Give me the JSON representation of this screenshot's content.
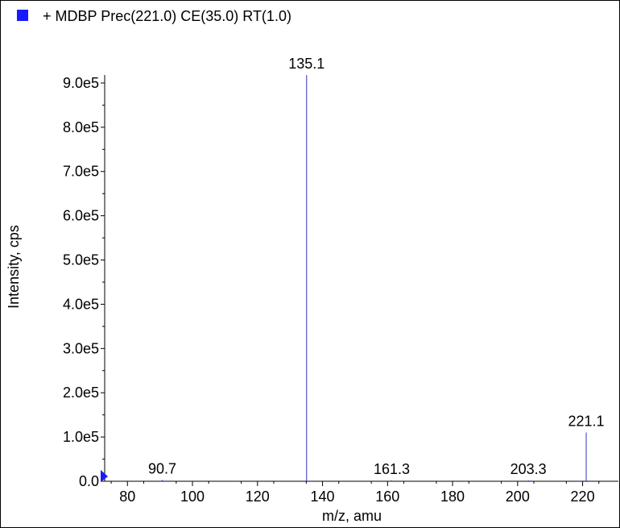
{
  "legend": {
    "label": "+ MDBP Prec(221.0) CE(35.0) RT(1.0)",
    "color": "#1a1aff"
  },
  "chart_data": {
    "type": "bar",
    "title": "",
    "xlabel": "m/z, amu",
    "ylabel": "Intensity, cps",
    "xlim": [
      73,
      231
    ],
    "ylim": [
      0,
      940000
    ],
    "x_ticks": [
      80,
      100,
      120,
      140,
      160,
      180,
      200,
      220
    ],
    "x_tick_labels": [
      "80",
      "100",
      "120",
      "140",
      "160",
      "180",
      "200",
      "220"
    ],
    "y_ticks": [
      0,
      100000,
      200000,
      300000,
      400000,
      500000,
      600000,
      700000,
      800000,
      900000
    ],
    "y_tick_labels": [
      "0.0",
      "1.0e5",
      "2.0e5",
      "3.0e5",
      "4.0e5",
      "5.0e5",
      "6.0e5",
      "7.0e5",
      "8.0e5",
      "9.0e5"
    ],
    "grid": false,
    "peaks": [
      {
        "x": 90.7,
        "y": 3000,
        "label": "90.7"
      },
      {
        "x": 135.1,
        "y": 918000,
        "label": "135.1"
      },
      {
        "x": 161.3,
        "y": 2000,
        "label": "161.3"
      },
      {
        "x": 203.3,
        "y": 2000,
        "label": "203.3"
      },
      {
        "x": 221.1,
        "y": 110000,
        "label": "221.1"
      }
    ],
    "peak_color": "#3333cc"
  }
}
